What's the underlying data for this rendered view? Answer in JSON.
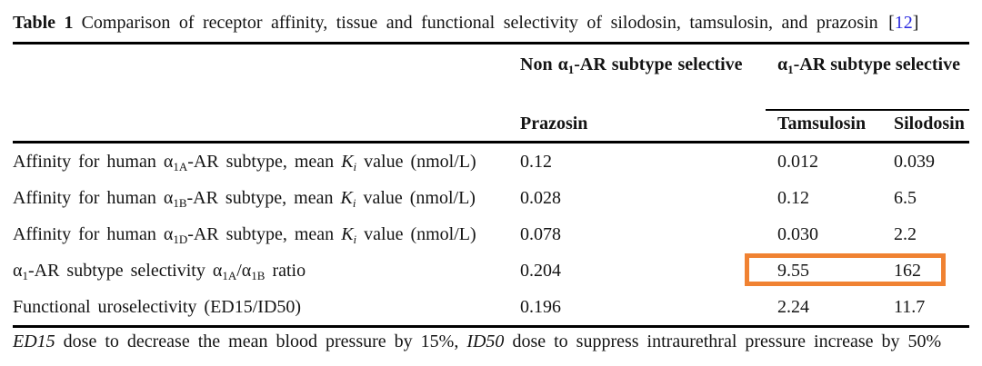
{
  "caption": {
    "label": "Table 1",
    "text": "Comparison of receptor affinity, tissue and functional selectivity of silodosin, tamsulosin, and prazosin",
    "citation_open": "[",
    "citation": "12",
    "citation_close": "]",
    "citation_color": "#2a2ae0"
  },
  "table": {
    "group_headers": {
      "non_selective": [
        {
          "t": "Non α"
        },
        {
          "sub": "1"
        },
        {
          "t": "-AR subtype selective"
        }
      ],
      "selective": [
        {
          "t": "α"
        },
        {
          "sub": "1"
        },
        {
          "t": "-AR subtype selective"
        }
      ]
    },
    "column_headers": [
      "Prazosin",
      "Tamsulosin",
      "Silodosin"
    ],
    "rows": [
      {
        "label": [
          {
            "t": "Affinity for human α"
          },
          {
            "sub": "1A"
          },
          {
            "t": "-AR subtype, mean "
          },
          {
            "i": "K"
          },
          {
            "isub": "i"
          },
          {
            "t": " value (nmol/L)"
          }
        ],
        "values": [
          "0.12",
          "0.012",
          "0.039"
        ],
        "highlighted": false
      },
      {
        "label": [
          {
            "t": "Affinity for human α"
          },
          {
            "sub": "1B"
          },
          {
            "t": "-AR subtype, mean "
          },
          {
            "i": "K"
          },
          {
            "isub": "i"
          },
          {
            "t": " value (nmol/L)"
          }
        ],
        "values": [
          "0.028",
          "0.12",
          "6.5"
        ],
        "highlighted": false
      },
      {
        "label": [
          {
            "t": "Affinity for human α"
          },
          {
            "sub": "1D"
          },
          {
            "t": "-AR subtype, mean "
          },
          {
            "i": "K"
          },
          {
            "isub": "i"
          },
          {
            "t": " value (nmol/L)"
          }
        ],
        "values": [
          "0.078",
          "0.030",
          "2.2"
        ],
        "highlighted": false
      },
      {
        "label": [
          {
            "t": "α"
          },
          {
            "sub": "1"
          },
          {
            "t": "-AR subtype selectivity α"
          },
          {
            "sub": "1A"
          },
          {
            "t": "/α"
          },
          {
            "sub": "1B"
          },
          {
            "t": " ratio"
          }
        ],
        "values": [
          "0.204",
          "9.55",
          "162"
        ],
        "highlighted": true
      },
      {
        "label": [
          {
            "t": "Functional uroselectivity (ED15/ID50)"
          }
        ],
        "values": [
          "0.196",
          "2.24",
          "11.7"
        ],
        "highlighted": false
      }
    ],
    "highlight_color": "#f08232"
  },
  "footnote": [
    {
      "i": "ED15"
    },
    {
      "t": " dose to decrease the mean blood pressure by 15%, "
    },
    {
      "i": "ID50"
    },
    {
      "t": "  dose to suppress intraurethral pressure increase by 50%"
    }
  ]
}
